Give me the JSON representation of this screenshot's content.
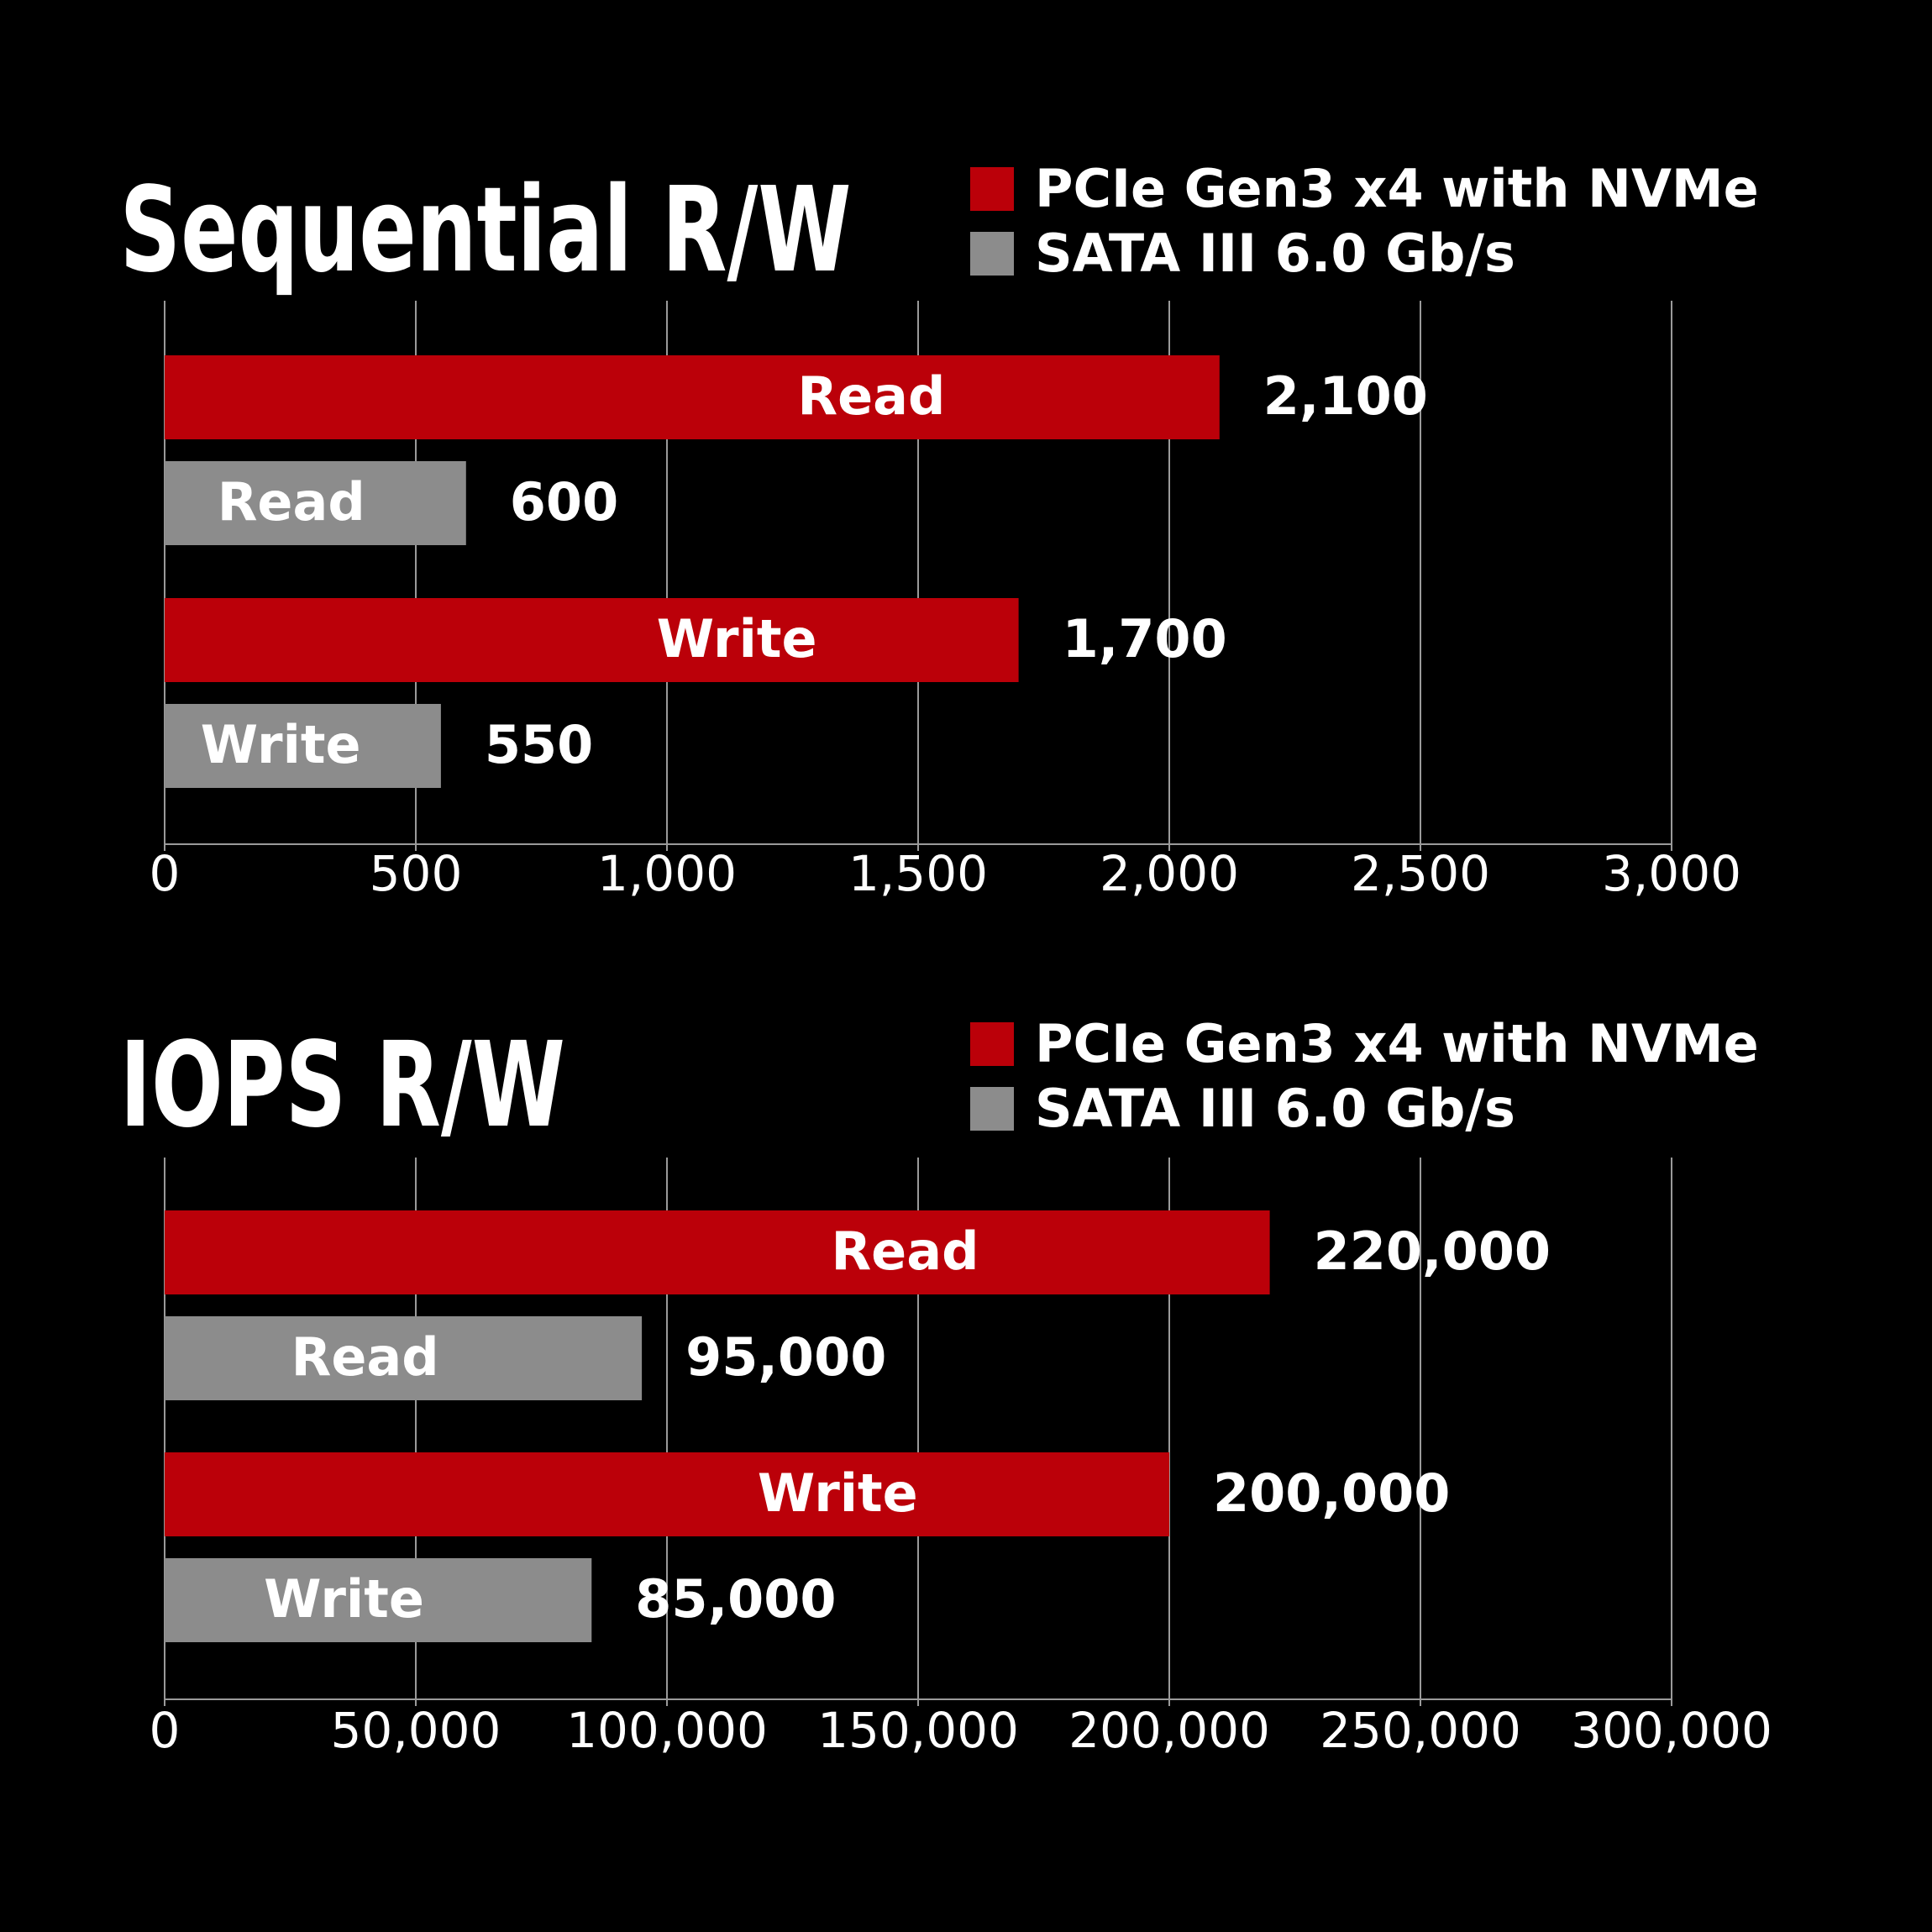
{
  "colors": {
    "background": "#000000",
    "pcie": "#bb0009",
    "sata": "#8c8c8c",
    "grid": "#9a9a9a",
    "text": "#ffffff"
  },
  "chart_data": [
    {
      "type": "bar",
      "orientation": "horizontal",
      "title": "Sequential R/W",
      "legend": [
        "PCIe Gen3 x4 with NVMe",
        "SATA III 6.0 Gb/s"
      ],
      "legend_position": "top-right",
      "grid": true,
      "xlim": [
        0,
        3000
      ],
      "ticks": [
        0,
        500,
        1000,
        1500,
        2000,
        2500,
        3000
      ],
      "tick_labels": [
        "0",
        "500",
        "1,000",
        "1,500",
        "2,000",
        "2,500",
        "3,000"
      ],
      "bars": [
        {
          "series": "PCIe Gen3 x4 with NVMe",
          "label": "Read",
          "value": 2100,
          "value_label": "2,100"
        },
        {
          "series": "SATA III 6.0 Gb/s",
          "label": "Read",
          "value": 600,
          "value_label": "600"
        },
        {
          "series": "PCIe Gen3 x4 with NVMe",
          "label": "Write",
          "value": 1700,
          "value_label": "1,700"
        },
        {
          "series": "SATA III 6.0 Gb/s",
          "label": "Write",
          "value": 550,
          "value_label": "550"
        }
      ]
    },
    {
      "type": "bar",
      "orientation": "horizontal",
      "title": "IOPS R/W",
      "legend": [
        "PCIe Gen3 x4 with NVMe",
        "SATA III 6.0 Gb/s"
      ],
      "legend_position": "top-right",
      "grid": true,
      "xlim": [
        0,
        300000
      ],
      "ticks": [
        0,
        50000,
        100000,
        150000,
        200000,
        250000,
        300000
      ],
      "tick_labels": [
        "0",
        "50,000",
        "100,000",
        "150,000",
        "200,000",
        "250,000",
        "300,000"
      ],
      "bars": [
        {
          "series": "PCIe Gen3 x4 with NVMe",
          "label": "Read",
          "value": 220000,
          "value_label": "220,000"
        },
        {
          "series": "SATA III 6.0 Gb/s",
          "label": "Read",
          "value": 95000,
          "value_label": "95,000"
        },
        {
          "series": "PCIe Gen3 x4 with NVMe",
          "label": "Write",
          "value": 200000,
          "value_label": "200,000"
        },
        {
          "series": "SATA III 6.0 Gb/s",
          "label": "Write",
          "value": 85000,
          "value_label": "85,000"
        }
      ]
    }
  ]
}
